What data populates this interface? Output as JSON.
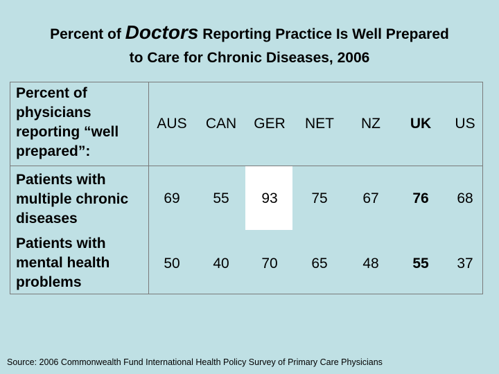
{
  "title": {
    "prefix": "Percent of ",
    "emphasis": "Doctors",
    "suffix": " Reporting Practice Is Well Prepared",
    "line2": "to Care for Chronic Diseases, 2006"
  },
  "header_label": "Percent of\nphysicians\nreporting “well\nprepared”:",
  "chart_data": {
    "type": "table",
    "columns": [
      "AUS",
      "CAN",
      "GER",
      "NET",
      "NZ",
      "UK",
      "US"
    ],
    "bold_column": "UK",
    "highlighted_cell": {
      "row": 0,
      "column": "GER"
    },
    "rows": [
      {
        "label": "Patients with\nmultiple chronic\ndiseases",
        "values": [
          69,
          55,
          93,
          75,
          67,
          76,
          68
        ]
      },
      {
        "label": "Patients with\nmental health\nproblems",
        "values": [
          50,
          40,
          70,
          65,
          48,
          55,
          37
        ]
      }
    ],
    "colors": {
      "background": "#bfe0e4",
      "highlight": "#ffffff",
      "border": "#7a7a7a"
    }
  },
  "source": "Source: 2006 Commonwealth Fund International Health Policy Survey of Primary Care Physicians"
}
